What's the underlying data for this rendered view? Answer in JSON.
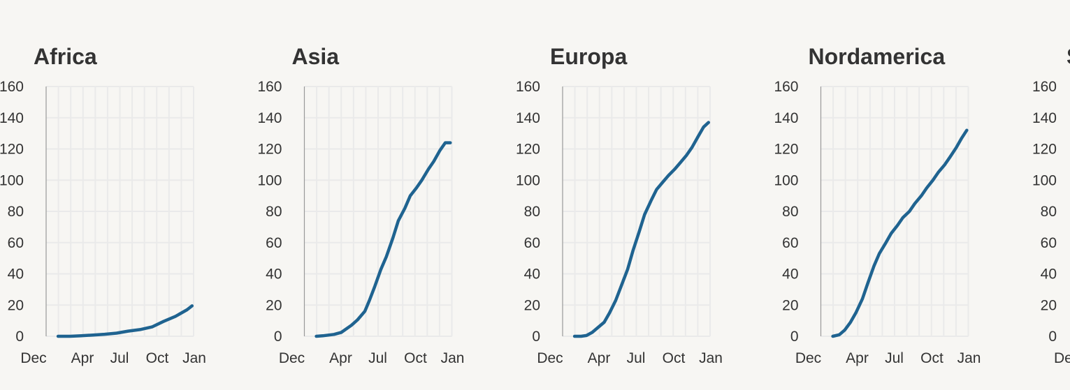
{
  "chart_data": [
    {
      "type": "line",
      "title": "Africa",
      "x": [
        "2020-01-15",
        "2020-02-15",
        "2020-03-15",
        "2020-04-15",
        "2020-05-15",
        "2020-06-15",
        "2020-07-15",
        "2020-08-15",
        "2020-09-15",
        "2020-10-15",
        "2020-11-15",
        "2020-12-15",
        "2020-12-28"
      ],
      "y": [
        0,
        0,
        0.3,
        0.8,
        1.3,
        2,
        3.3,
        4.3,
        6,
        9.5,
        12.8,
        17,
        19.5
      ],
      "xticks": [
        "Dec",
        "Apr",
        "Jul",
        "Oct",
        "Jan"
      ],
      "yticks": [
        0,
        20,
        40,
        60,
        80,
        100,
        120,
        140,
        160
      ],
      "ylim": [
        0,
        160
      ],
      "grid": true,
      "color": "#1f6390"
    },
    {
      "type": "line",
      "title": "Asia",
      "x": [
        "2020-01-15",
        "2020-02-01",
        "2020-03-01",
        "2020-03-20",
        "2020-04-15",
        "2020-05-01",
        "2020-05-20",
        "2020-06-01",
        "2020-06-15",
        "2020-07-01",
        "2020-07-15",
        "2020-08-01",
        "2020-08-15",
        "2020-09-01",
        "2020-09-15",
        "2020-10-01",
        "2020-10-15",
        "2020-11-01",
        "2020-11-15",
        "2020-12-01",
        "2020-12-15",
        "2020-12-28"
      ],
      "y": [
        0,
        0.3,
        1.2,
        2.5,
        7,
        10.5,
        16,
        23,
        32,
        43,
        51,
        63,
        74,
        82,
        90,
        95,
        100,
        107,
        112,
        119,
        124,
        124
      ],
      "xticks": [
        "Dec",
        "Apr",
        "Jul",
        "Oct",
        "Jan"
      ],
      "yticks": [
        0,
        20,
        40,
        60,
        80,
        100,
        120,
        140,
        160
      ],
      "ylim": [
        0,
        160
      ],
      "grid": true,
      "color": "#1f6390"
    },
    {
      "type": "line",
      "title": "Europa",
      "x": [
        "2020-01-15",
        "2020-02-01",
        "2020-02-15",
        "2020-03-01",
        "2020-04-01",
        "2020-04-15",
        "2020-05-01",
        "2020-05-15",
        "2020-06-01",
        "2020-06-15",
        "2020-07-01",
        "2020-07-15",
        "2020-08-01",
        "2020-08-15",
        "2020-09-01",
        "2020-09-15",
        "2020-10-01",
        "2020-10-15",
        "2020-11-01",
        "2020-11-15",
        "2020-12-01",
        "2020-12-15",
        "2020-12-28"
      ],
      "y": [
        0,
        0,
        0.5,
        2.5,
        9,
        15,
        23,
        32,
        43,
        55,
        67,
        78,
        87,
        94,
        99,
        103,
        107,
        111,
        116,
        121,
        128,
        134,
        137
      ],
      "xticks": [
        "Dec",
        "Apr",
        "Jul",
        "Oct",
        "Jan"
      ],
      "yticks": [
        0,
        20,
        40,
        60,
        80,
        100,
        120,
        140,
        160
      ],
      "ylim": [
        0,
        160
      ],
      "grid": true,
      "color": "#1f6390"
    },
    {
      "type": "line",
      "title": "Nordamerica",
      "x": [
        "2020-01-15",
        "2020-02-01",
        "2020-02-15",
        "2020-03-01",
        "2020-03-15",
        "2020-04-01",
        "2020-04-15",
        "2020-05-01",
        "2020-05-15",
        "2020-06-01",
        "2020-06-15",
        "2020-07-01",
        "2020-07-15",
        "2020-08-01",
        "2020-08-15",
        "2020-09-01",
        "2020-09-15",
        "2020-10-01",
        "2020-10-15",
        "2020-11-01",
        "2020-11-15",
        "2020-12-01",
        "2020-12-15",
        "2020-12-28"
      ],
      "y": [
        0,
        1,
        4,
        9,
        15,
        24,
        34,
        45,
        53,
        60,
        66,
        71,
        76,
        80,
        85,
        90,
        95,
        100,
        105,
        110,
        115,
        121,
        127,
        132
      ],
      "xticks": [
        "Dec",
        "Apr",
        "Jul",
        "Oct",
        "Jan"
      ],
      "yticks": [
        0,
        20,
        40,
        60,
        80,
        100,
        120,
        140,
        160
      ],
      "ylim": [
        0,
        160
      ],
      "grid": true,
      "color": "#1f6390"
    },
    {
      "type": "line",
      "title": "S",
      "x": [],
      "y": [],
      "xticks": [
        "De"
      ],
      "yticks": [
        0,
        20,
        40,
        60,
        80,
        100,
        120,
        140,
        160
      ],
      "ylim": [
        0,
        160
      ],
      "grid": true,
      "color": "#1f6390"
    }
  ]
}
